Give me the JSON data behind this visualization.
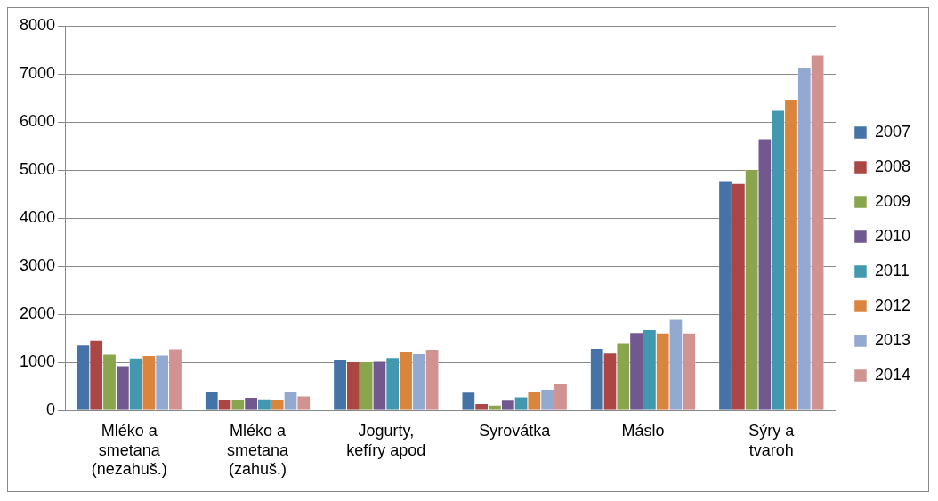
{
  "chart_data": {
    "type": "bar",
    "categories": [
      "Mléko a smetana (nezahuš.)",
      "Mléko a smetana (zahuš.)",
      "Jogurty, kefíry apod",
      "Syrovátka",
      "Máslo",
      "Sýry a tvaroh"
    ],
    "ylim": [
      0,
      8000
    ],
    "yticks": [
      0,
      1000,
      2000,
      3000,
      4000,
      5000,
      6000,
      7000,
      8000
    ],
    "grid": "y",
    "legend": "right",
    "series": [
      {
        "name": "2007",
        "color": "#4572a7",
        "values": [
          1370,
          410,
          1060,
          390,
          1300,
          4790
        ]
      },
      {
        "name": "2008",
        "color": "#aa4643",
        "values": [
          1470,
          230,
          1020,
          150,
          1200,
          4730
        ]
      },
      {
        "name": "2009",
        "color": "#89a54e",
        "values": [
          1180,
          230,
          1020,
          120,
          1400,
          5020
        ]
      },
      {
        "name": "2010",
        "color": "#71588f",
        "values": [
          940,
          280,
          1030,
          220,
          1630,
          5660
        ]
      },
      {
        "name": "2011",
        "color": "#4198af",
        "values": [
          1100,
          250,
          1110,
          290,
          1690,
          6250
        ]
      },
      {
        "name": "2012",
        "color": "#db843d",
        "values": [
          1150,
          240,
          1240,
          400,
          1620,
          6480
        ]
      },
      {
        "name": "2013",
        "color": "#93a9cf",
        "values": [
          1160,
          410,
          1190,
          450,
          1900,
          7150
        ]
      },
      {
        "name": "2014",
        "color": "#d19392",
        "values": [
          1290,
          310,
          1280,
          560,
          1620,
          7400
        ]
      }
    ]
  }
}
